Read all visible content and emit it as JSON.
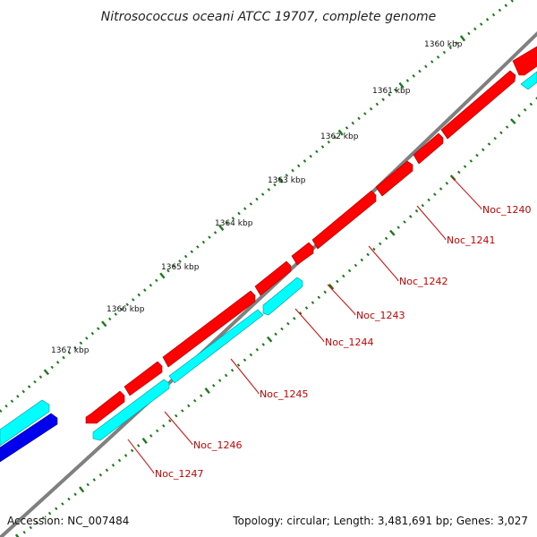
{
  "title": "Nitrosococcus oceani ATCC 19707, complete genome",
  "kbp_labels": [
    "1360 kbp",
    "1361 kbp",
    "1362 kbp",
    "1363 kbp",
    "1364 kbp",
    "1365 kbp",
    "1366 kbp",
    "1367 kbp"
  ],
  "gene_labels": [
    "Noc_1240",
    "Noc_1241",
    "Noc_1242",
    "Noc_1243",
    "Noc_1244",
    "Noc_1245",
    "Noc_1246",
    "Noc_1247"
  ],
  "footer": {
    "accession": "Accession: NC_007484",
    "summary": "Topology: circular; Length: 3,481,691 bp; Genes: 3,027"
  },
  "colors": {
    "forward_gene": "#ff0000",
    "reverse_gene": "#00ffff",
    "other_gene": "#0000ff",
    "backbone": "#808080",
    "tick": "#1a7a1a",
    "label_line": "#e00000"
  }
}
